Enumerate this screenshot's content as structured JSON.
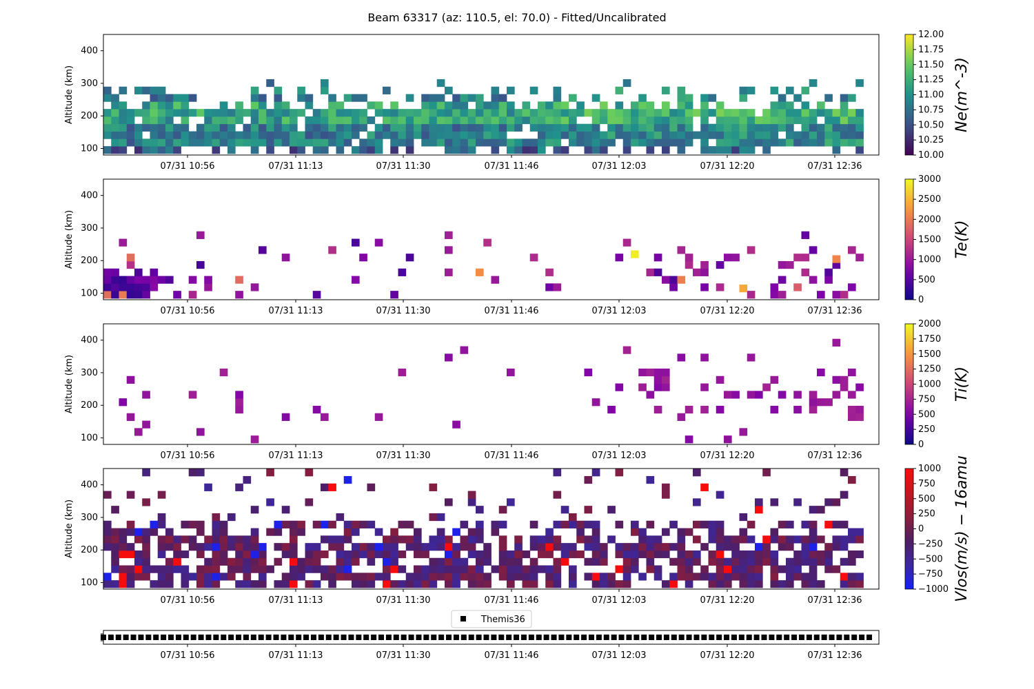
{
  "figure": {
    "title": "Beam 63317 (az: 110.5, el: 70.0) - Fitted/Uncalibrated"
  },
  "chart_data": [
    {
      "type": "heatmap",
      "ylabel": "Altitude (km)",
      "yticks": [
        "100",
        "200",
        "300",
        "400"
      ],
      "ylim": [
        80,
        450
      ],
      "xticks": [
        "07/31 10:56",
        "07/31 11:13",
        "07/31 11:30",
        "07/31 11:46",
        "07/31 12:03",
        "07/31 12:20",
        "07/31 12:36"
      ],
      "time_range": [
        "07/31 10:44",
        "07/31 12:40"
      ],
      "colorbar": {
        "label": "Ne(m^-3)",
        "colormap": "viridis",
        "range": [
          10.0,
          12.0
        ],
        "ticks": [
          "10.00",
          "10.25",
          "10.50",
          "10.75",
          "11.00",
          "11.25",
          "11.50",
          "11.75",
          "12.00"
        ]
      },
      "altitude_band_km": [
        95,
        305
      ],
      "summary": "Dense coverage from 100 to 240 km with values mostly 10.3-11.2; sparser returns up to ~310 km."
    },
    {
      "type": "heatmap",
      "ylabel": "Altitude (km)",
      "yticks": [
        "100",
        "200",
        "300",
        "400"
      ],
      "ylim": [
        80,
        450
      ],
      "xticks": [
        "07/31 10:56",
        "07/31 11:13",
        "07/31 11:30",
        "07/31 11:46",
        "07/31 12:03",
        "07/31 12:20",
        "07/31 12:36"
      ],
      "colorbar": {
        "label": "Te(K)",
        "colormap": "plasma",
        "range": [
          0,
          3000
        ],
        "ticks": [
          "0",
          "500",
          "1000",
          "1500",
          "2000",
          "2500",
          "3000"
        ]
      },
      "summary": "Sparse returns; dense block below 190 km before 11:00 (~300-900 K); scattered points up to 3000 K after 12:00."
    },
    {
      "type": "heatmap",
      "ylabel": "Altitude (km)",
      "yticks": [
        "100",
        "200",
        "300",
        "400"
      ],
      "ylim": [
        80,
        450
      ],
      "xticks": [
        "07/31 10:56",
        "07/31 11:13",
        "07/31 11:30",
        "07/31 11:46",
        "07/31 12:03",
        "07/31 12:20",
        "07/31 12:36"
      ],
      "colorbar": {
        "label": "Ti(K)",
        "colormap": "plasma",
        "range": [
          0,
          2000
        ],
        "ticks": [
          "0",
          "250",
          "500",
          "750",
          "1000",
          "1250",
          "1500",
          "1750",
          "2000"
        ]
      },
      "summary": "Sparse scattered returns between 110 and 410 km, mostly 500-800 K."
    },
    {
      "type": "heatmap",
      "ylabel": "Altitude (km)",
      "yticks": [
        "100",
        "200",
        "300",
        "400"
      ],
      "ylim": [
        80,
        450
      ],
      "xticks": [
        "07/31 10:56",
        "07/31 11:13",
        "07/31 11:30",
        "07/31 11:46",
        "07/31 12:03",
        "07/31 12:20",
        "07/31 12:36"
      ],
      "colorbar": {
        "label": "Vlos(m/s) − 16amu",
        "colormap": "bwr",
        "range": [
          -1000,
          1000
        ],
        "ticks": [
          "−1000",
          "−750",
          "−500",
          "−250",
          "0",
          "250",
          "500",
          "750",
          "1000"
        ]
      },
      "summary": "Dense coverage from 100 to 280 km with values near zero (-300 to 300 m/s); sparse outliers up to 450 km with extremes of ±1000 m/s."
    },
    {
      "type": "scatter",
      "series": [
        {
          "name": "Themis36",
          "marker": "square",
          "color": "#000000"
        }
      ],
      "xticks": [
        "07/31 10:56",
        "07/31 11:13",
        "07/31 11:30",
        "07/31 11:46",
        "07/31 12:03",
        "07/31 12:20",
        "07/31 12:36"
      ],
      "summary": "One marker per time step across the full time range."
    }
  ]
}
